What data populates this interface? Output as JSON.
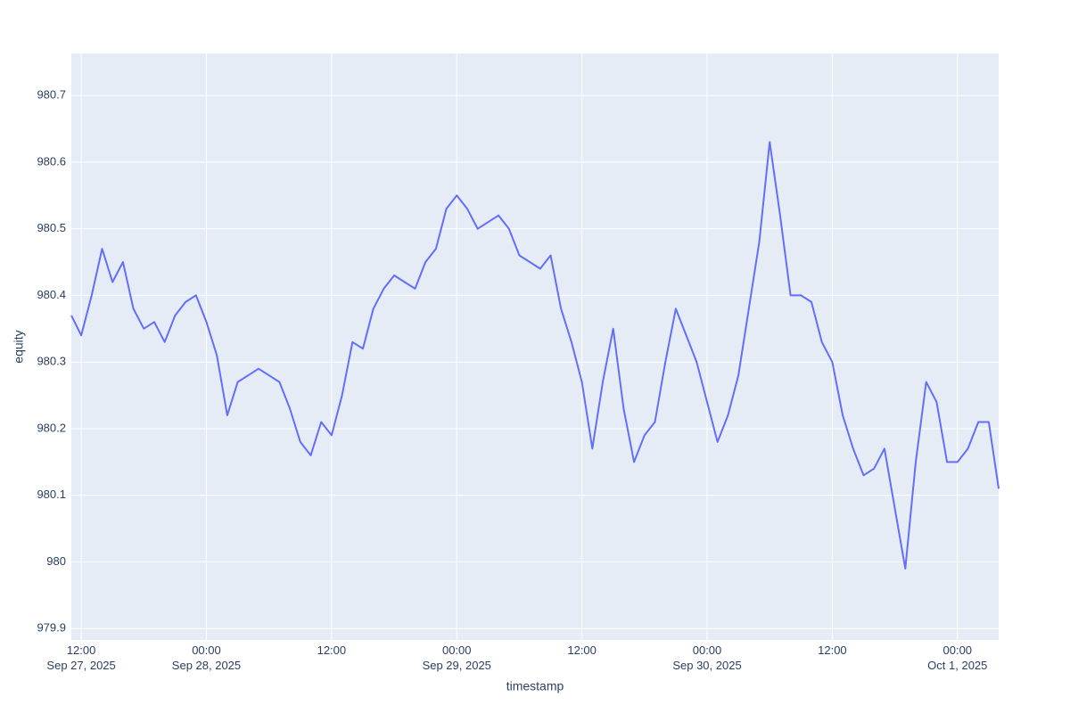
{
  "chart_data": {
    "type": "line",
    "x_label": "timestamp",
    "y_label": "equity",
    "color": "#636efa",
    "grid": true,
    "xlim": [
      "2025-09-27 11:03",
      "2025-10-01 03:57"
    ],
    "ylim": [
      979.883,
      980.763
    ],
    "xticks": [
      {
        "value": "2025-09-27 12:00",
        "label": "12:00\nSep 27, 2025"
      },
      {
        "value": "2025-09-28 00:00",
        "label": "00:00\nSep 28, 2025"
      },
      {
        "value": "2025-09-28 12:00",
        "label": "12:00"
      },
      {
        "value": "2025-09-29 00:00",
        "label": "00:00\nSep 29, 2025"
      },
      {
        "value": "2025-09-29 12:00",
        "label": "12:00"
      },
      {
        "value": "2025-09-30 00:00",
        "label": "00:00\nSep 30, 2025"
      },
      {
        "value": "2025-09-30 12:00",
        "label": "12:00"
      },
      {
        "value": "2025-10-01 00:00",
        "label": "00:00\nOct 1, 2025"
      }
    ],
    "yticks": [
      979.9,
      980,
      980.1,
      980.2,
      980.3,
      980.4,
      980.5,
      980.6,
      980.7
    ],
    "x": [
      "2025-09-27 11:03",
      "2025-09-27 12:00",
      "2025-09-27 13:00",
      "2025-09-27 14:00",
      "2025-09-27 15:00",
      "2025-09-27 16:00",
      "2025-09-27 17:00",
      "2025-09-27 18:00",
      "2025-09-27 19:00",
      "2025-09-27 20:00",
      "2025-09-27 21:00",
      "2025-09-27 22:00",
      "2025-09-27 23:00",
      "2025-09-28 00:00",
      "2025-09-28 01:00",
      "2025-09-28 02:00",
      "2025-09-28 03:00",
      "2025-09-28 04:00",
      "2025-09-28 05:00",
      "2025-09-28 06:00",
      "2025-09-28 07:00",
      "2025-09-28 08:00",
      "2025-09-28 09:00",
      "2025-09-28 10:00",
      "2025-09-28 11:00",
      "2025-09-28 12:00",
      "2025-09-28 13:00",
      "2025-09-28 14:00",
      "2025-09-28 15:00",
      "2025-09-28 16:00",
      "2025-09-28 17:00",
      "2025-09-28 18:00",
      "2025-09-28 19:00",
      "2025-09-28 20:00",
      "2025-09-28 21:00",
      "2025-09-28 22:00",
      "2025-09-28 23:00",
      "2025-09-29 00:00",
      "2025-09-29 01:00",
      "2025-09-29 02:00",
      "2025-09-29 03:00",
      "2025-09-29 04:00",
      "2025-09-29 05:00",
      "2025-09-29 06:00",
      "2025-09-29 07:00",
      "2025-09-29 08:00",
      "2025-09-29 09:00",
      "2025-09-29 10:00",
      "2025-09-29 11:00",
      "2025-09-29 12:00",
      "2025-09-29 13:00",
      "2025-09-29 14:00",
      "2025-09-29 15:00",
      "2025-09-29 16:00",
      "2025-09-29 17:00",
      "2025-09-29 18:00",
      "2025-09-29 19:00",
      "2025-09-29 20:00",
      "2025-09-29 21:00",
      "2025-09-29 22:00",
      "2025-09-29 23:00",
      "2025-09-30 00:00",
      "2025-09-30 01:00",
      "2025-09-30 02:00",
      "2025-09-30 03:00",
      "2025-09-30 04:00",
      "2025-09-30 05:00",
      "2025-09-30 06:00",
      "2025-09-30 07:00",
      "2025-09-30 08:00",
      "2025-09-30 09:00",
      "2025-09-30 10:00",
      "2025-09-30 11:00",
      "2025-09-30 12:00",
      "2025-09-30 13:00",
      "2025-09-30 14:00",
      "2025-09-30 15:00",
      "2025-09-30 16:00",
      "2025-09-30 17:00",
      "2025-09-30 18:00",
      "2025-09-30 19:00",
      "2025-09-30 20:00",
      "2025-09-30 21:00",
      "2025-09-30 22:00",
      "2025-09-30 23:00",
      "2025-10-01 00:00",
      "2025-10-01 01:00",
      "2025-10-01 02:00",
      "2025-10-01 03:00",
      "2025-10-01 03:57"
    ],
    "values": [
      980.37,
      980.34,
      980.4,
      980.47,
      980.42,
      980.45,
      980.38,
      980.35,
      980.36,
      980.33,
      980.37,
      980.39,
      980.4,
      980.36,
      980.31,
      980.22,
      980.27,
      980.28,
      980.29,
      980.28,
      980.27,
      980.23,
      980.18,
      980.16,
      980.21,
      980.19,
      980.25,
      980.33,
      980.32,
      980.38,
      980.41,
      980.43,
      980.42,
      980.41,
      980.45,
      980.47,
      980.53,
      980.55,
      980.53,
      980.5,
      980.51,
      980.52,
      980.5,
      980.46,
      980.45,
      980.44,
      980.46,
      980.38,
      980.33,
      980.27,
      980.17,
      980.27,
      980.35,
      980.23,
      980.15,
      980.19,
      980.21,
      980.3,
      980.38,
      980.34,
      980.3,
      980.24,
      980.18,
      980.22,
      980.28,
      980.38,
      980.48,
      980.63,
      980.52,
      980.4,
      980.4,
      980.39,
      980.33,
      980.3,
      980.22,
      980.17,
      980.13,
      980.14,
      980.17,
      980.08,
      979.99,
      980.15,
      980.27,
      980.24,
      980.15,
      980.15,
      980.17,
      980.21,
      980.21,
      980.11
    ]
  }
}
